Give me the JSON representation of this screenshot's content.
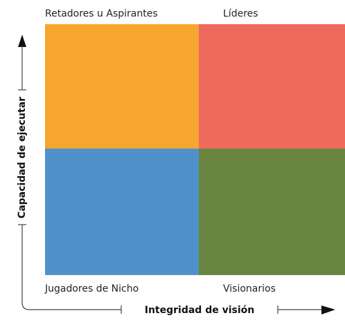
{
  "quadrants": [
    {
      "label": "Retadores u Aspirantes"
    },
    {
      "label": "Líderes"
    },
    {
      "label": "Jugadores de Nicho"
    },
    {
      "label": "Visionarios"
    }
  ],
  "axes": {
    "y_label": "Capacidad de ejecutar",
    "x_label": "Integridad de visión"
  }
}
